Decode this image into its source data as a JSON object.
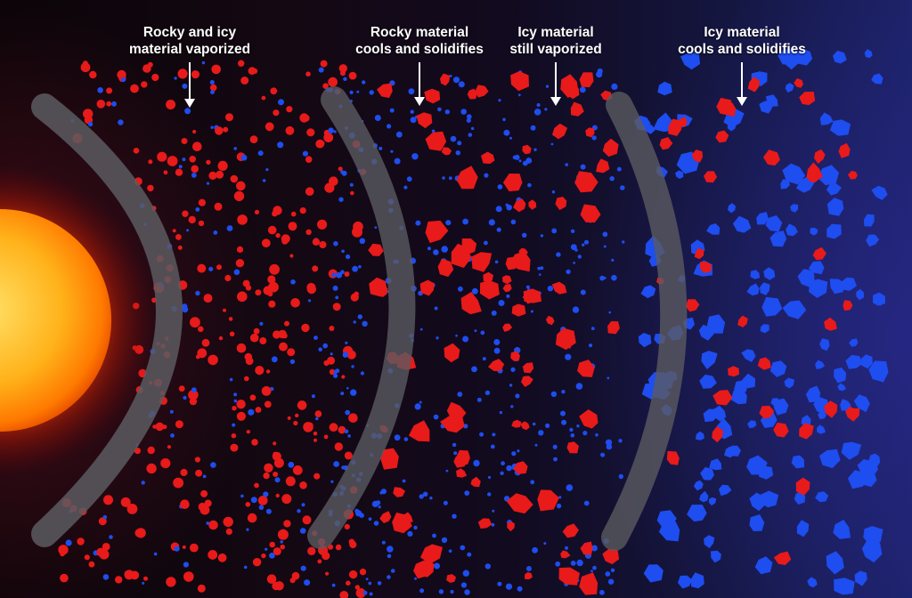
{
  "colors": {
    "rocky": "#e81a1a",
    "icy": "#1e4df0",
    "sun_core": "#ffd23a",
    "sun_edge": "#ff6a00",
    "boundary": "#5a5a60"
  },
  "zones": [
    {
      "id": "rocky-icy-vaporized",
      "line1": "Rocky and icy",
      "line2": "material vaporized"
    },
    {
      "id": "rocky-solidifies",
      "line1": "Rocky material",
      "line2": "cools and solidifies"
    },
    {
      "id": "icy-vaporized",
      "line1": "Icy material",
      "line2": "still vaporized"
    },
    {
      "id": "icy-solidifies",
      "line1": "Icy material",
      "line2": "cools and solidifies"
    }
  ]
}
